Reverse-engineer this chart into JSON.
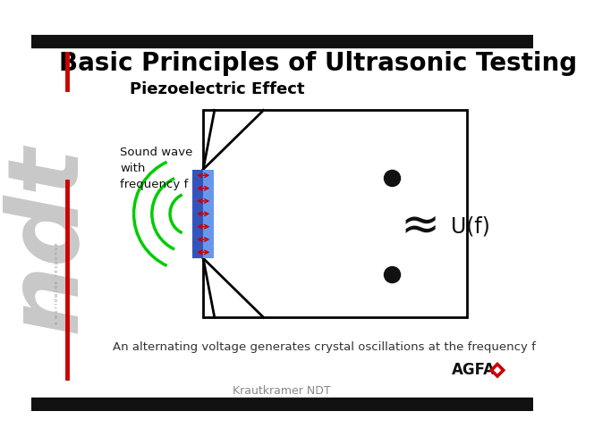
{
  "title": "Basic Principles of Ultrasonic Testing",
  "subtitle": "Piezoelectric Effect",
  "caption": "An alternating voltage generates crystal oscillations at the frequency f",
  "footer": "Krautkramer NDT",
  "sound_wave_label": "Sound wave\nwith\nfrequency f",
  "voltage_label": "U(f)",
  "slide_bg": "#ffffff",
  "title_color": "#000000",
  "subtitle_color": "#000000",
  "red_line_color": "#cc0000",
  "ndt_text_color": "#c8c8c8",
  "green_wave_color": "#00cc00",
  "crystal_blue1": "#3355bb",
  "crystal_blue2": "#6699ee",
  "crystal_red_arrow": "#cc0000",
  "box_color": "#000000",
  "dot_color": "#111111",
  "approx_color": "#111111",
  "agfa_red": "#cc0000",
  "bar_color": "#111111",
  "caption_color": "#333333",
  "footer_color": "#888888"
}
